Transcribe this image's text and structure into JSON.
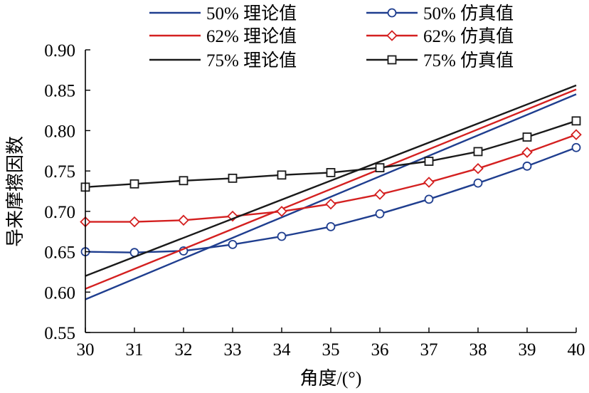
{
  "chart_data": {
    "type": "line",
    "xlabel": "角度/(°)",
    "ylabel": "导来摩擦因数",
    "xlim": [
      30,
      40
    ],
    "ylim": [
      0.55,
      0.9
    ],
    "x_ticks": [
      "30",
      "31",
      "32",
      "33",
      "34",
      "35",
      "36",
      "37",
      "38",
      "39",
      "40"
    ],
    "y_ticks": [
      "0.55",
      "0.60",
      "0.65",
      "0.70",
      "0.75",
      "0.80",
      "0.85",
      "0.90"
    ],
    "grid": false,
    "legend_position": "top",
    "series": [
      {
        "name": "50% 理论值",
        "style": "line",
        "color": "#1f3e8f",
        "marker": "none",
        "x": [
          30,
          40
        ],
        "y": [
          0.591,
          0.845
        ]
      },
      {
        "name": "50% 仿真值",
        "style": "line-marker",
        "color": "#1f3e8f",
        "marker": "circle",
        "x": [
          30,
          31,
          32,
          33,
          34,
          35,
          36,
          37,
          38,
          39,
          40
        ],
        "y": [
          0.65,
          0.649,
          0.651,
          0.659,
          0.669,
          0.681,
          0.697,
          0.715,
          0.735,
          0.756,
          0.779
        ]
      },
      {
        "name": "62% 理论值",
        "style": "line",
        "color": "#d42020",
        "marker": "none",
        "x": [
          30,
          40
        ],
        "y": [
          0.604,
          0.851
        ]
      },
      {
        "name": "62% 仿真值",
        "style": "line-marker",
        "color": "#d42020",
        "marker": "diamond",
        "x": [
          30,
          31,
          32,
          33,
          34,
          35,
          36,
          37,
          38,
          39,
          40
        ],
        "y": [
          0.687,
          0.687,
          0.689,
          0.694,
          0.7,
          0.709,
          0.721,
          0.736,
          0.753,
          0.773,
          0.795
        ]
      },
      {
        "name": "75% 理论值",
        "style": "line",
        "color": "#1a1a1a",
        "marker": "none",
        "x": [
          30,
          40
        ],
        "y": [
          0.62,
          0.856
        ]
      },
      {
        "name": "75% 仿真值",
        "style": "line-marker",
        "color": "#1a1a1a",
        "marker": "square",
        "x": [
          30,
          31,
          32,
          33,
          34,
          35,
          36,
          37,
          38,
          39,
          40
        ],
        "y": [
          0.73,
          0.734,
          0.738,
          0.741,
          0.745,
          0.748,
          0.754,
          0.762,
          0.774,
          0.792,
          0.812
        ]
      }
    ]
  }
}
